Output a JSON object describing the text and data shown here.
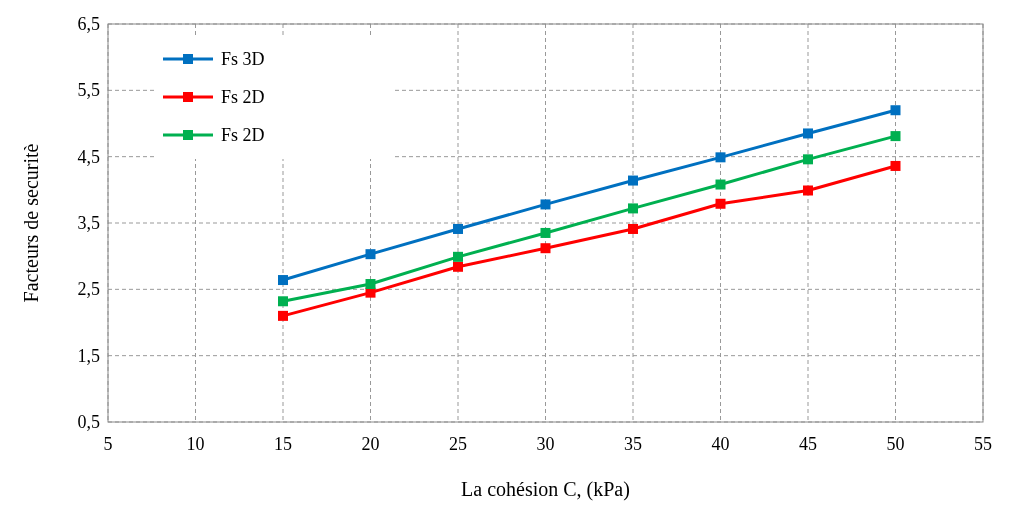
{
  "chart_data": {
    "type": "line",
    "xlabel": "La cohésion C, (kPa)",
    "ylabel": "Facteurs de securitè",
    "x": [
      15,
      20,
      25,
      30,
      35,
      40,
      45,
      50
    ],
    "series": [
      {
        "name": "Fs 3D",
        "color": "#0070c0",
        "values": [
          2.64,
          3.03,
          3.41,
          3.78,
          4.14,
          4.49,
          4.85,
          5.2
        ]
      },
      {
        "name": "Fs 2D",
        "color": "#ff0000",
        "values": [
          2.1,
          2.45,
          2.84,
          3.12,
          3.41,
          3.79,
          3.99,
          4.36
        ]
      },
      {
        "name": "Fs 2D",
        "color": "#00b050",
        "values": [
          2.32,
          2.58,
          2.99,
          3.35,
          3.72,
          4.08,
          4.46,
          4.81
        ]
      }
    ],
    "xlim": [
      5,
      55
    ],
    "xticks": [
      5,
      10,
      15,
      20,
      25,
      30,
      35,
      40,
      45,
      50,
      55
    ],
    "ylim": [
      0.5,
      6.5
    ],
    "yticks": [
      {
        "value": 0.5,
        "label": "0,5"
      },
      {
        "value": 1.5,
        "label": "1,5"
      },
      {
        "value": 2.5,
        "label": "2,5"
      },
      {
        "value": 3.5,
        "label": "3,5"
      },
      {
        "value": 4.5,
        "label": "4,5"
      },
      {
        "value": 5.5,
        "label": "5,5"
      },
      {
        "value": 6.5,
        "label": "6,5"
      }
    ],
    "grid": true,
    "legend": "top left",
    "marker": "square",
    "line_style": "solid"
  }
}
